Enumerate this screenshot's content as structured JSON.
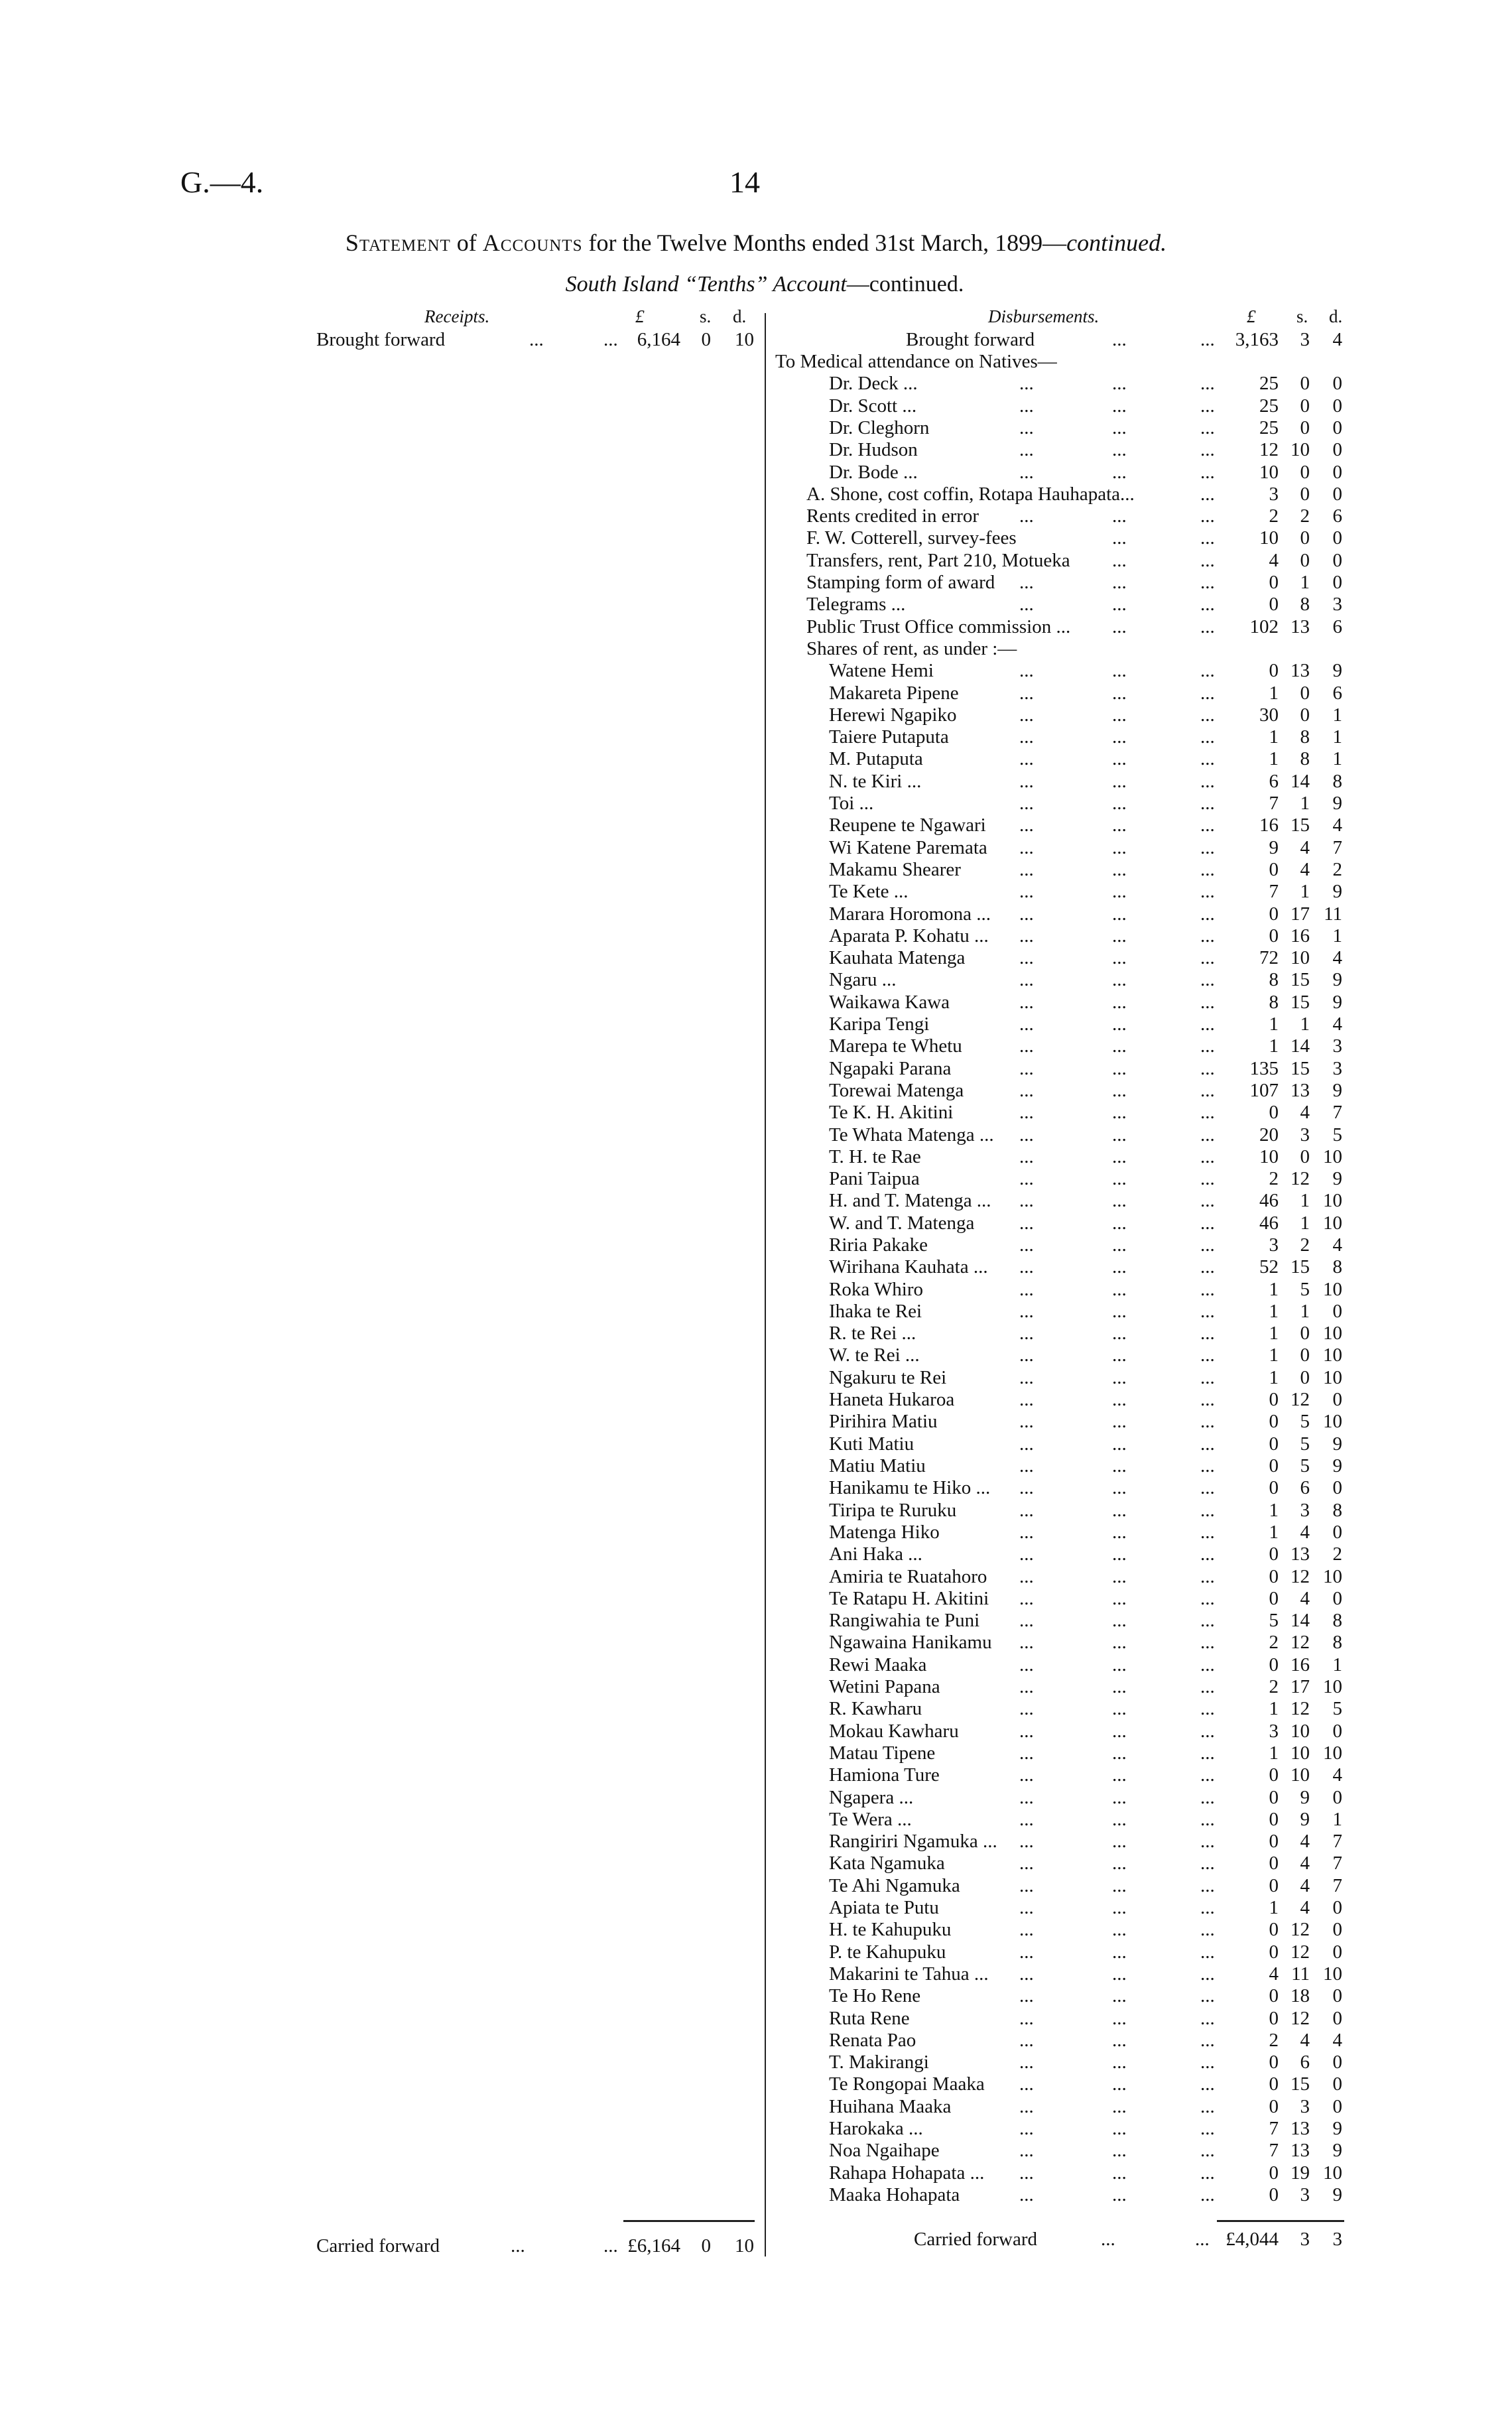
{
  "header": {
    "reference": "G.—4.",
    "page_number": "14"
  },
  "title": {
    "part1": "Statement",
    "part2": " of ",
    "part3": "Accounts",
    "part4": " for the Twelve Months ended 31st March, 1899—",
    "part5": "continued."
  },
  "subtitle": {
    "part1": "South Island “Tenths” Account",
    "part2": "—continued."
  },
  "receipts": {
    "heading": "Receipts.",
    "col_pounds": "£",
    "col_shillings": "s.",
    "col_pence": "d.",
    "brought_forward": {
      "label": "Brought forward",
      "dots1": "...",
      "dots2": "...",
      "pounds": "6,164",
      "shillings": "0",
      "pence": "10"
    },
    "carried_forward": {
      "label": "Carried forward",
      "dots1": "...",
      "dots2": "...",
      "pounds": "£6,164",
      "shillings": "0",
      "pence": "10"
    }
  },
  "disbursements": {
    "heading": "Disbursements.",
    "col_pounds": "£",
    "col_shillings": "s.",
    "col_pence": "d.",
    "brought_forward": {
      "label": "Brought forward",
      "dots1": "...",
      "dots2": "...",
      "pounds": "3,163",
      "shillings": "3",
      "pence": "4"
    },
    "rows": [
      {
        "label": "To Medical attendance on Natives—",
        "indent": 0
      },
      {
        "label": "Dr. Deck ...",
        "indent": 2,
        "pounds": "25",
        "shillings": "0",
        "pence": "0"
      },
      {
        "label": "Dr. Scott ...",
        "indent": 2,
        "pounds": "25",
        "shillings": "0",
        "pence": "0"
      },
      {
        "label": "Dr. Cleghorn",
        "indent": 2,
        "pounds": "25",
        "shillings": "0",
        "pence": "0"
      },
      {
        "label": "Dr. Hudson",
        "indent": 2,
        "pounds": "12",
        "shillings": "10",
        "pence": "0"
      },
      {
        "label": "Dr. Bode ...",
        "indent": 2,
        "pounds": "10",
        "shillings": "0",
        "pence": "0"
      },
      {
        "label": "A. Shone, cost coffin, Rotapa Hauhapata...",
        "indent": 1,
        "pounds": "3",
        "shillings": "0",
        "pence": "0"
      },
      {
        "label": "Rents credited in error",
        "indent": 1,
        "pounds": "2",
        "shillings": "2",
        "pence": "6"
      },
      {
        "label": "F. W. Cotterell, survey-fees",
        "indent": 1,
        "pounds": "10",
        "shillings": "0",
        "pence": "0"
      },
      {
        "label": "Transfers, rent, Part 210, Motueka",
        "indent": 1,
        "pounds": "4",
        "shillings": "0",
        "pence": "0"
      },
      {
        "label": "Stamping form of award",
        "indent": 1,
        "pounds": "0",
        "shillings": "1",
        "pence": "0"
      },
      {
        "label": "Telegrams ...",
        "indent": 1,
        "pounds": "0",
        "shillings": "8",
        "pence": "3"
      },
      {
        "label": "Public Trust Office commission ...",
        "indent": 1,
        "pounds": "102",
        "shillings": "13",
        "pence": "6"
      },
      {
        "label": "Shares of rent, as under :—",
        "indent": 1
      },
      {
        "label": "Watene Hemi",
        "indent": 2,
        "pounds": "0",
        "shillings": "13",
        "pence": "9"
      },
      {
        "label": "Makareta Pipene",
        "indent": 2,
        "pounds": "1",
        "shillings": "0",
        "pence": "6"
      },
      {
        "label": "Herewi Ngapiko",
        "indent": 2,
        "pounds": "30",
        "shillings": "0",
        "pence": "1"
      },
      {
        "label": "Taiere Putaputa",
        "indent": 2,
        "pounds": "1",
        "shillings": "8",
        "pence": "1"
      },
      {
        "label": "M. Putaputa",
        "indent": 2,
        "pounds": "1",
        "shillings": "8",
        "pence": "1"
      },
      {
        "label": "N. te Kiri ...",
        "indent": 2,
        "pounds": "6",
        "shillings": "14",
        "pence": "8"
      },
      {
        "label": "Toi ...",
        "indent": 2,
        "pounds": "7",
        "shillings": "1",
        "pence": "9"
      },
      {
        "label": "Reupene te Ngawari",
        "indent": 2,
        "pounds": "16",
        "shillings": "15",
        "pence": "4"
      },
      {
        "label": "Wi Katene Paremata",
        "indent": 2,
        "pounds": "9",
        "shillings": "4",
        "pence": "7"
      },
      {
        "label": "Makamu Shearer",
        "indent": 2,
        "pounds": "0",
        "shillings": "4",
        "pence": "2"
      },
      {
        "label": "Te Kete ...",
        "indent": 2,
        "pounds": "7",
        "shillings": "1",
        "pence": "9"
      },
      {
        "label": "Marara Horomona ...",
        "indent": 2,
        "pounds": "0",
        "shillings": "17",
        "pence": "11"
      },
      {
        "label": "Aparata P. Kohatu ...",
        "indent": 2,
        "pounds": "0",
        "shillings": "16",
        "pence": "1"
      },
      {
        "label": "Kauhata Matenga",
        "indent": 2,
        "pounds": "72",
        "shillings": "10",
        "pence": "4"
      },
      {
        "label": "Ngaru ...",
        "indent": 2,
        "pounds": "8",
        "shillings": "15",
        "pence": "9"
      },
      {
        "label": "Waikawa Kawa",
        "indent": 2,
        "pounds": "8",
        "shillings": "15",
        "pence": "9"
      },
      {
        "label": "Karipa Tengi",
        "indent": 2,
        "pounds": "1",
        "shillings": "1",
        "pence": "4"
      },
      {
        "label": "Marepa te Whetu",
        "indent": 2,
        "pounds": "1",
        "shillings": "14",
        "pence": "3"
      },
      {
        "label": "Ngapaki Parana",
        "indent": 2,
        "pounds": "135",
        "shillings": "15",
        "pence": "3"
      },
      {
        "label": "Torewai Matenga",
        "indent": 2,
        "pounds": "107",
        "shillings": "13",
        "pence": "9"
      },
      {
        "label": "Te K. H. Akitini",
        "indent": 2,
        "pounds": "0",
        "shillings": "4",
        "pence": "7"
      },
      {
        "label": "Te Whata Matenga ...",
        "indent": 2,
        "pounds": "20",
        "shillings": "3",
        "pence": "5"
      },
      {
        "label": "T. H. te Rae",
        "indent": 2,
        "pounds": "10",
        "shillings": "0",
        "pence": "10"
      },
      {
        "label": "Pani Taipua",
        "indent": 2,
        "pounds": "2",
        "shillings": "12",
        "pence": "9"
      },
      {
        "label": "H. and T. Matenga ...",
        "indent": 2,
        "pounds": "46",
        "shillings": "1",
        "pence": "10"
      },
      {
        "label": "W. and T. Matenga",
        "indent": 2,
        "pounds": "46",
        "shillings": "1",
        "pence": "10"
      },
      {
        "label": "Riria Pakake",
        "indent": 2,
        "pounds": "3",
        "shillings": "2",
        "pence": "4"
      },
      {
        "label": "Wirihana Kauhata ...",
        "indent": 2,
        "pounds": "52",
        "shillings": "15",
        "pence": "8"
      },
      {
        "label": "Roka Whiro",
        "indent": 2,
        "pounds": "1",
        "shillings": "5",
        "pence": "10"
      },
      {
        "label": "Ihaka te Rei",
        "indent": 2,
        "pounds": "1",
        "shillings": "1",
        "pence": "0"
      },
      {
        "label": "R. te Rei ...",
        "indent": 2,
        "pounds": "1",
        "shillings": "0",
        "pence": "10"
      },
      {
        "label": "W. te Rei ...",
        "indent": 2,
        "pounds": "1",
        "shillings": "0",
        "pence": "10"
      },
      {
        "label": "Ngakuru te Rei",
        "indent": 2,
        "pounds": "1",
        "shillings": "0",
        "pence": "10"
      },
      {
        "label": "Haneta Hukaroa",
        "indent": 2,
        "pounds": "0",
        "shillings": "12",
        "pence": "0"
      },
      {
        "label": "Pirihira Matiu",
        "indent": 2,
        "pounds": "0",
        "shillings": "5",
        "pence": "10"
      },
      {
        "label": "Kuti Matiu",
        "indent": 2,
        "pounds": "0",
        "shillings": "5",
        "pence": "9"
      },
      {
        "label": "Matiu Matiu",
        "indent": 2,
        "pounds": "0",
        "shillings": "5",
        "pence": "9"
      },
      {
        "label": "Hanikamu te Hiko ...",
        "indent": 2,
        "pounds": "0",
        "shillings": "6",
        "pence": "0"
      },
      {
        "label": "Tiripa te Ruruku",
        "indent": 2,
        "pounds": "1",
        "shillings": "3",
        "pence": "8"
      },
      {
        "label": "Matenga Hiko",
        "indent": 2,
        "pounds": "1",
        "shillings": "4",
        "pence": "0"
      },
      {
        "label": "Ani Haka ...",
        "indent": 2,
        "pounds": "0",
        "shillings": "13",
        "pence": "2"
      },
      {
        "label": "Amiria te Ruatahoro",
        "indent": 2,
        "pounds": "0",
        "shillings": "12",
        "pence": "10"
      },
      {
        "label": "Te Ratapu H. Akitini",
        "indent": 2,
        "pounds": "0",
        "shillings": "4",
        "pence": "0"
      },
      {
        "label": "Rangiwahia te Puni",
        "indent": 2,
        "pounds": "5",
        "shillings": "14",
        "pence": "8"
      },
      {
        "label": "Ngawaina Hanikamu",
        "indent": 2,
        "pounds": "2",
        "shillings": "12",
        "pence": "8"
      },
      {
        "label": "Rewi Maaka",
        "indent": 2,
        "pounds": "0",
        "shillings": "16",
        "pence": "1"
      },
      {
        "label": "Wetini Papana",
        "indent": 2,
        "pounds": "2",
        "shillings": "17",
        "pence": "10"
      },
      {
        "label": "R. Kawharu",
        "indent": 2,
        "pounds": "1",
        "shillings": "12",
        "pence": "5"
      },
      {
        "label": "Mokau Kawharu",
        "indent": 2,
        "pounds": "3",
        "shillings": "10",
        "pence": "0"
      },
      {
        "label": "Matau Tipene",
        "indent": 2,
        "pounds": "1",
        "shillings": "10",
        "pence": "10"
      },
      {
        "label": "Hamiona Ture",
        "indent": 2,
        "pounds": "0",
        "shillings": "10",
        "pence": "4"
      },
      {
        "label": "Ngapera ...",
        "indent": 2,
        "pounds": "0",
        "shillings": "9",
        "pence": "0"
      },
      {
        "label": "Te Wera ...",
        "indent": 2,
        "pounds": "0",
        "shillings": "9",
        "pence": "1"
      },
      {
        "label": "Rangiriri Ngamuka ...",
        "indent": 2,
        "pounds": "0",
        "shillings": "4",
        "pence": "7"
      },
      {
        "label": "Kata Ngamuka",
        "indent": 2,
        "pounds": "0",
        "shillings": "4",
        "pence": "7"
      },
      {
        "label": "Te Ahi Ngamuka",
        "indent": 2,
        "pounds": "0",
        "shillings": "4",
        "pence": "7"
      },
      {
        "label": "Apiata te Putu",
        "indent": 2,
        "pounds": "1",
        "shillings": "4",
        "pence": "0"
      },
      {
        "label": "H. te Kahupuku",
        "indent": 2,
        "pounds": "0",
        "shillings": "12",
        "pence": "0"
      },
      {
        "label": "P. te Kahupuku",
        "indent": 2,
        "pounds": "0",
        "shillings": "12",
        "pence": "0"
      },
      {
        "label": "Makarini te Tahua ...",
        "indent": 2,
        "pounds": "4",
        "shillings": "11",
        "pence": "10"
      },
      {
        "label": "Te Ho Rene",
        "indent": 2,
        "pounds": "0",
        "shillings": "18",
        "pence": "0"
      },
      {
        "label": "Ruta Rene",
        "indent": 2,
        "pounds": "0",
        "shillings": "12",
        "pence": "0"
      },
      {
        "label": "Renata Pao",
        "indent": 2,
        "pounds": "2",
        "shillings": "4",
        "pence": "4"
      },
      {
        "label": "T. Makirangi",
        "indent": 2,
        "pounds": "0",
        "shillings": "6",
        "pence": "0"
      },
      {
        "label": "Te Rongopai Maaka",
        "indent": 2,
        "pounds": "0",
        "shillings": "15",
        "pence": "0"
      },
      {
        "label": "Huihana Maaka",
        "indent": 2,
        "pounds": "0",
        "shillings": "3",
        "pence": "0"
      },
      {
        "label": "Harokaka ...",
        "indent": 2,
        "pounds": "7",
        "shillings": "13",
        "pence": "9"
      },
      {
        "label": "Noa Ngaihape",
        "indent": 2,
        "pounds": "7",
        "shillings": "13",
        "pence": "9"
      },
      {
        "label": "Rahapa Hohapata ...",
        "indent": 2,
        "pounds": "0",
        "shillings": "19",
        "pence": "10"
      },
      {
        "label": "Maaka Hohapata",
        "indent": 2,
        "pounds": "0",
        "shillings": "3",
        "pence": "9"
      }
    ],
    "leader": "...",
    "carried_forward": {
      "label": "Carried forward",
      "dots1": "...",
      "dots2": "...",
      "pounds": "£4,044",
      "shillings": "3",
      "pence": "3"
    }
  }
}
